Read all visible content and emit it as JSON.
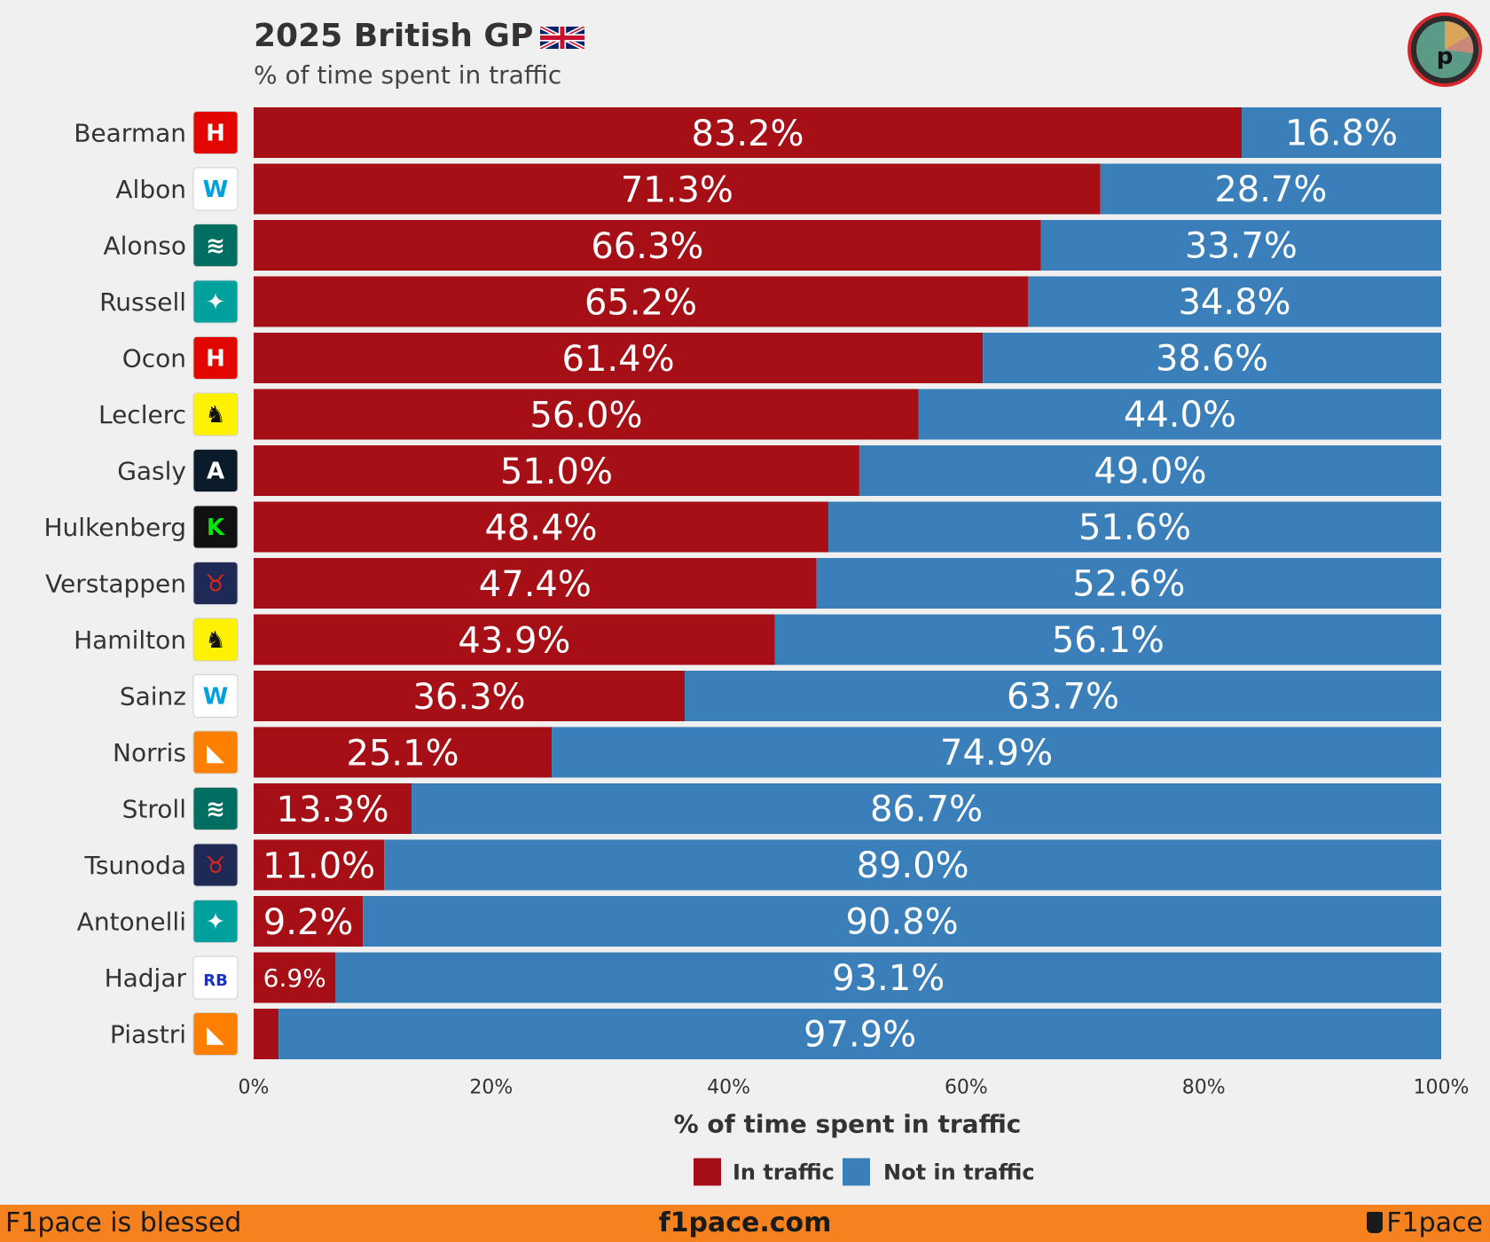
{
  "header": {
    "title": "2025 British GP",
    "subtitle": "% of time spent in traffic"
  },
  "colors": {
    "in_traffic": "#a50f15",
    "not_in_traffic": "#3a7fba",
    "footer": "#f5821f",
    "background": "#f0f0f0"
  },
  "chart_data": {
    "type": "bar",
    "orientation": "horizontal",
    "stacked": true,
    "title": "2025 British GP",
    "subtitle": "% of time spent in traffic",
    "xlabel": "% of time spent in traffic",
    "ylabel": "",
    "xlim": [
      0,
      100
    ],
    "x_ticks": [
      "0%",
      "20%",
      "40%",
      "60%",
      "80%",
      "100%"
    ],
    "x_tick_values": [
      0,
      20,
      40,
      60,
      80,
      100
    ],
    "categories": [
      "Bearman",
      "Albon",
      "Alonso",
      "Russell",
      "Ocon",
      "Leclerc",
      "Gasly",
      "Hulkenberg",
      "Verstappen",
      "Hamilton",
      "Sainz",
      "Norris",
      "Stroll",
      "Tsunoda",
      "Antonelli",
      "Hadjar",
      "Piastri"
    ],
    "teams": [
      "haas",
      "williams",
      "aston-martin",
      "mercedes",
      "haas",
      "ferrari",
      "alpine",
      "sauber",
      "red-bull",
      "ferrari",
      "williams",
      "mclaren",
      "aston-martin",
      "red-bull",
      "mercedes",
      "racing-bulls",
      "mclaren"
    ],
    "series": [
      {
        "name": "In traffic",
        "color": "#a50f15",
        "values": [
          83.2,
          71.3,
          66.3,
          65.2,
          61.4,
          56.0,
          51.0,
          48.4,
          47.4,
          43.9,
          36.3,
          25.1,
          13.3,
          11.0,
          9.2,
          6.9,
          2.1
        ],
        "labels": [
          "83.2%",
          "71.3%",
          "66.3%",
          "65.2%",
          "61.4%",
          "56.0%",
          "51.0%",
          "48.4%",
          "47.4%",
          "43.9%",
          "36.3%",
          "25.1%",
          "13.3%",
          "11.0%",
          "9.2%",
          "6.9%",
          ""
        ]
      },
      {
        "name": "Not in traffic",
        "color": "#3a7fba",
        "values": [
          16.8,
          28.7,
          33.7,
          34.8,
          38.6,
          44.0,
          49.0,
          51.6,
          52.6,
          56.1,
          63.7,
          74.9,
          86.7,
          89.0,
          90.8,
          93.1,
          97.9
        ],
        "labels": [
          "16.8%",
          "28.7%",
          "33.7%",
          "34.8%",
          "38.6%",
          "44.0%",
          "49.0%",
          "51.6%",
          "52.6%",
          "56.1%",
          "63.7%",
          "74.9%",
          "86.7%",
          "89.0%",
          "90.8%",
          "93.1%",
          "97.9%"
        ]
      }
    ],
    "legend": {
      "position": "bottom-center",
      "entries": [
        "In traffic",
        "Not in traffic"
      ]
    }
  },
  "footer": {
    "left": "F1pace is blessed",
    "center": "f1pace.com",
    "right": "F1pace"
  }
}
